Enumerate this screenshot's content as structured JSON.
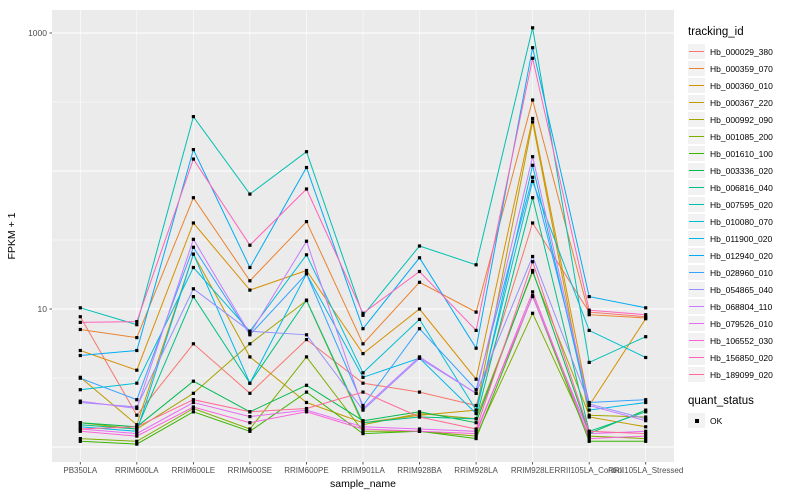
{
  "figure": {
    "bg": "#FFFFFF",
    "panel_bg": "#EBEBEB",
    "grid_color": "#FFFFFF",
    "tick_color": "#333333",
    "tick_label_color": "#4D4D4D",
    "axis_title_color": "#000000",
    "point_color": "#000000"
  },
  "axes": {
    "x_title": "sample_name",
    "y_title": "FPKM + 1",
    "y_tick_labels": [
      "1000",
      "10"
    ]
  },
  "legend": {
    "tracking_title": "tracking_id",
    "quant_title": "quant_status",
    "quant_items": [
      {
        "label": "OK",
        "color": "#000000"
      }
    ]
  },
  "chart_data": {
    "type": "line",
    "x_type": "categorical",
    "y_scale": "log10",
    "xlabel": "sample_name",
    "ylabel": "FPKM + 1",
    "grid": true,
    "legend_position": "right",
    "legend_title": "tracking_id",
    "point_legend": {
      "title": "quant_status",
      "items": [
        "OK"
      ]
    },
    "ylim": [
      0.78,
      1300
    ],
    "y_major_breaks": [
      1,
      10,
      100,
      1000
    ],
    "y_labeled_breaks": [
      1000,
      10
    ],
    "y_minor_breaks": [
      3.162,
      31.62,
      316.2
    ],
    "categories": [
      "PB350LA",
      "RRIM600LA",
      "RRIM600LE",
      "RRIM600SE",
      "RRIM600PE",
      "RRIM901LA",
      "RRIM928BA",
      "RRIM928LA",
      "RRIM928LE",
      "RRII105LA_Control",
      "RRII105LA_Stressed"
    ],
    "series": [
      {
        "name": "Hb_000029_380",
        "color": "#F8766D",
        "values": [
          8.8,
          1.7,
          5.6,
          2.45,
          6.0,
          2.9,
          2.5,
          2.0,
          42,
          9.5,
          8.8
        ]
      },
      {
        "name": "Hb_000359_070",
        "color": "#EA8331",
        "values": [
          7.1,
          6.2,
          64,
          16,
          43,
          5.6,
          15.6,
          9.5,
          327,
          9.1,
          8.6
        ]
      },
      {
        "name": "Hb_000360_010",
        "color": "#D89000",
        "values": [
          5.0,
          3.6,
          42,
          13.7,
          19,
          4.75,
          10.0,
          3.1,
          240,
          2.0,
          8.5
        ]
      },
      {
        "name": "Hb_000367_220",
        "color": "#C09B00",
        "values": [
          3.2,
          1.45,
          25,
          4.5,
          2.1,
          1.5,
          1.7,
          1.85,
          227,
          1.65,
          1.4
        ]
      },
      {
        "name": "Hb_000992_090",
        "color": "#A3A500",
        "values": [
          1.5,
          1.35,
          2.45,
          5.6,
          11.5,
          1.45,
          1.75,
          1.6,
          18.5,
          1.7,
          1.65
        ]
      },
      {
        "name": "Hb_001085_200",
        "color": "#7CAE00",
        "values": [
          1.15,
          1.1,
          1.9,
          1.35,
          4.5,
          1.3,
          1.3,
          1.2,
          9.3,
          1.2,
          1.15
        ]
      },
      {
        "name": "Hb_001610_100",
        "color": "#39B600",
        "values": [
          1.1,
          1.05,
          1.8,
          1.3,
          2.5,
          1.25,
          1.3,
          1.15,
          12.5,
          1.1,
          1.1
        ]
      },
      {
        "name": "Hb_003336_020",
        "color": "#00BB4E",
        "values": [
          1.5,
          1.4,
          3.0,
          1.8,
          2.8,
          1.55,
          1.8,
          1.5,
          19,
          1.25,
          1.85
        ]
      },
      {
        "name": "Hb_006816_040",
        "color": "#00C087",
        "values": [
          1.45,
          1.35,
          12.3,
          2.9,
          11.6,
          1.5,
          1.65,
          1.6,
          64,
          1.3,
          1.8
        ]
      },
      {
        "name": "Hb_007595_020",
        "color": "#00C0B2",
        "values": [
          10.2,
          7.7,
          248,
          68,
          138,
          9.0,
          28.6,
          20.9,
          1090,
          4.1,
          6.3
        ]
      },
      {
        "name": "Hb_010080_070",
        "color": "#00BFD3",
        "values": [
          2.6,
          2.9,
          20,
          6.9,
          24.7,
          3.45,
          8.4,
          1.85,
          84,
          7.0,
          4.45
        ]
      },
      {
        "name": "Hb_011900_020",
        "color": "#00B8E7",
        "values": [
          1.4,
          1.3,
          25,
          2.9,
          18,
          3.2,
          4.4,
          1.75,
          110,
          1.85,
          2.1
        ]
      },
      {
        "name": "Hb_012940_020",
        "color": "#00ACF4",
        "values": [
          4.6,
          5.0,
          143,
          20,
          106,
          7.2,
          23.5,
          5.2,
          783,
          12.3,
          10.2
        ]
      },
      {
        "name": "Hb_028960_010",
        "color": "#35A2FF",
        "values": [
          3.15,
          2.2,
          28,
          6.5,
          18,
          2.0,
          7.2,
          2.6,
          90,
          2.1,
          2.2
        ]
      },
      {
        "name": "Hb_054865_040",
        "color": "#9590FF",
        "values": [
          2.1,
          1.95,
          14,
          6.9,
          6.5,
          1.85,
          4.4,
          2.45,
          24,
          2.05,
          1.6
        ]
      },
      {
        "name": "Hb_068804_110",
        "color": "#C77CFF",
        "values": [
          2.15,
          1.9,
          32,
          6.6,
          31,
          1.9,
          4.5,
          2.45,
          127,
          2.0,
          1.55
        ]
      },
      {
        "name": "Hb_079526_010",
        "color": "#E76BF3",
        "values": [
          1.35,
          1.25,
          2.1,
          1.66,
          1.85,
          1.4,
          1.35,
          1.3,
          12.3,
          1.25,
          1.3
        ]
      },
      {
        "name": "Hb_106552_030",
        "color": "#FA62DB",
        "values": [
          1.3,
          1.2,
          1.95,
          1.5,
          1.8,
          1.35,
          1.3,
          1.25,
          13.3,
          1.15,
          1.2
        ]
      },
      {
        "name": "Hb_156850_020",
        "color": "#FF62BC",
        "values": [
          8.0,
          8.1,
          122,
          29,
          74,
          9.3,
          18.7,
          7.0,
          656,
          9.8,
          9.1
        ]
      },
      {
        "name": "Hb_189099_020",
        "color": "#FF6A98",
        "values": [
          1.35,
          1.4,
          2.2,
          1.8,
          1.9,
          2.5,
          1.65,
          1.35,
          22,
          1.3,
          1.25
        ]
      }
    ]
  }
}
